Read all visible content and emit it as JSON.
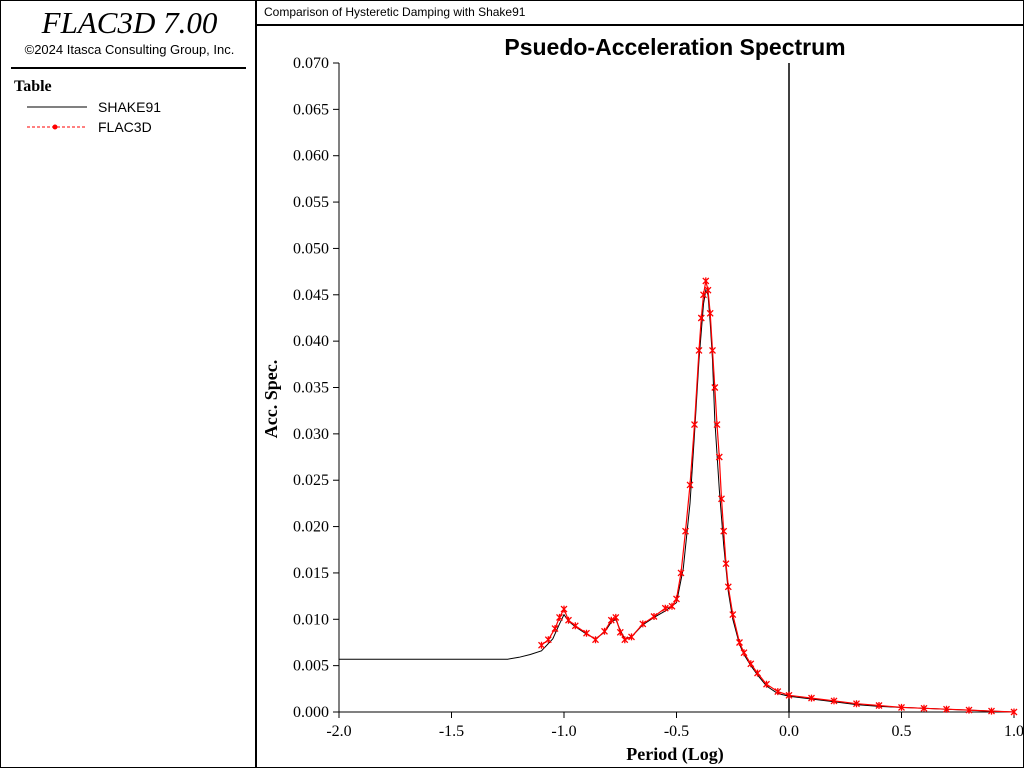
{
  "app": {
    "title": "FLAC3D 7.00",
    "copyright": "©2024 Itasca Consulting Group, Inc."
  },
  "window": {
    "title": "Comparison of Hysteretic Damping with Shake91"
  },
  "legend": {
    "heading": "Table",
    "items": [
      {
        "label": "SHAKE91",
        "color": "#000000",
        "style": "solid"
      },
      {
        "label": "FLAC3D",
        "color": "#ff0000",
        "style": "dashed-marker"
      }
    ]
  },
  "chart_data": {
    "type": "line",
    "title": "Psuedo-Acceleration Spectrum",
    "xlabel": "Period (Log)",
    "ylabel": "Acc. Spec.",
    "xlim": [
      -2.0,
      1.0
    ],
    "ylim": [
      0.0,
      0.07
    ],
    "x_ticks": [
      "-2.0",
      "-1.5",
      "-1.0",
      "-0.5",
      "0.0",
      "0.5",
      "1.0"
    ],
    "y_ticks": [
      "0.000",
      "0.005",
      "0.010",
      "0.015",
      "0.020",
      "0.025",
      "0.030",
      "0.035",
      "0.040",
      "0.045",
      "0.050",
      "0.055",
      "0.060",
      "0.065",
      "0.070"
    ],
    "vertical_reference_line_x": 0.0,
    "grid": false,
    "series": [
      {
        "name": "SHAKE91",
        "color": "#000000",
        "x": [
          -2.0,
          -1.5,
          -1.3,
          -1.25,
          -1.2,
          -1.15,
          -1.1,
          -1.05,
          -1.02,
          -1.0,
          -0.98,
          -0.95,
          -0.9,
          -0.86,
          -0.82,
          -0.79,
          -0.77,
          -0.75,
          -0.73,
          -0.7,
          -0.65,
          -0.6,
          -0.55,
          -0.5,
          -0.47,
          -0.44,
          -0.42,
          -0.4,
          -0.38,
          -0.37,
          -0.36,
          -0.35,
          -0.34,
          -0.33,
          -0.31,
          -0.29,
          -0.27,
          -0.25,
          -0.22,
          -0.2,
          -0.17,
          -0.14,
          -0.1,
          -0.05,
          0.0,
          0.1,
          0.2,
          0.3,
          0.4,
          0.5,
          0.6,
          0.7,
          0.8,
          0.9,
          1.0
        ],
        "y": [
          0.0057,
          0.0057,
          0.0057,
          0.0057,
          0.0059,
          0.0062,
          0.0066,
          0.0079,
          0.0095,
          0.0105,
          0.0098,
          0.0092,
          0.0084,
          0.0079,
          0.0086,
          0.0097,
          0.01,
          0.0088,
          0.0079,
          0.0081,
          0.0094,
          0.0102,
          0.0109,
          0.0118,
          0.0155,
          0.0225,
          0.03,
          0.038,
          0.044,
          0.0455,
          0.045,
          0.042,
          0.038,
          0.0315,
          0.024,
          0.018,
          0.013,
          0.01,
          0.0073,
          0.0062,
          0.005,
          0.004,
          0.0028,
          0.002,
          0.0017,
          0.0014,
          0.0011,
          0.0008,
          0.0006,
          0.0005,
          0.0004,
          0.0003,
          0.0002,
          0.0001,
          0.0
        ]
      },
      {
        "name": "FLAC3D",
        "color": "#ff0000",
        "x": [
          -1.1,
          -1.07,
          -1.04,
          -1.02,
          -1.0,
          -0.98,
          -0.95,
          -0.9,
          -0.86,
          -0.82,
          -0.79,
          -0.77,
          -0.75,
          -0.73,
          -0.7,
          -0.65,
          -0.6,
          -0.55,
          -0.52,
          -0.5,
          -0.48,
          -0.46,
          -0.44,
          -0.42,
          -0.4,
          -0.39,
          -0.38,
          -0.37,
          -0.36,
          -0.35,
          -0.34,
          -0.33,
          -0.32,
          -0.31,
          -0.3,
          -0.29,
          -0.28,
          -0.27,
          -0.25,
          -0.22,
          -0.2,
          -0.17,
          -0.14,
          -0.1,
          -0.05,
          0.0,
          0.1,
          0.2,
          0.3,
          0.4,
          0.5,
          0.6,
          0.7,
          0.8,
          0.9,
          1.0
        ],
        "y": [
          0.0072,
          0.0078,
          0.009,
          0.0102,
          0.0111,
          0.0099,
          0.0093,
          0.0085,
          0.0078,
          0.0087,
          0.0099,
          0.0102,
          0.0086,
          0.0078,
          0.0081,
          0.0095,
          0.0103,
          0.0112,
          0.0114,
          0.0122,
          0.015,
          0.0195,
          0.0245,
          0.031,
          0.039,
          0.0425,
          0.045,
          0.0465,
          0.0455,
          0.043,
          0.039,
          0.035,
          0.031,
          0.0275,
          0.023,
          0.0195,
          0.016,
          0.0135,
          0.0105,
          0.0075,
          0.0064,
          0.0052,
          0.0042,
          0.003,
          0.0022,
          0.0018,
          0.0015,
          0.0012,
          0.0009,
          0.0007,
          0.0005,
          0.0004,
          0.0003,
          0.0002,
          0.0001,
          0.0
        ]
      }
    ]
  }
}
